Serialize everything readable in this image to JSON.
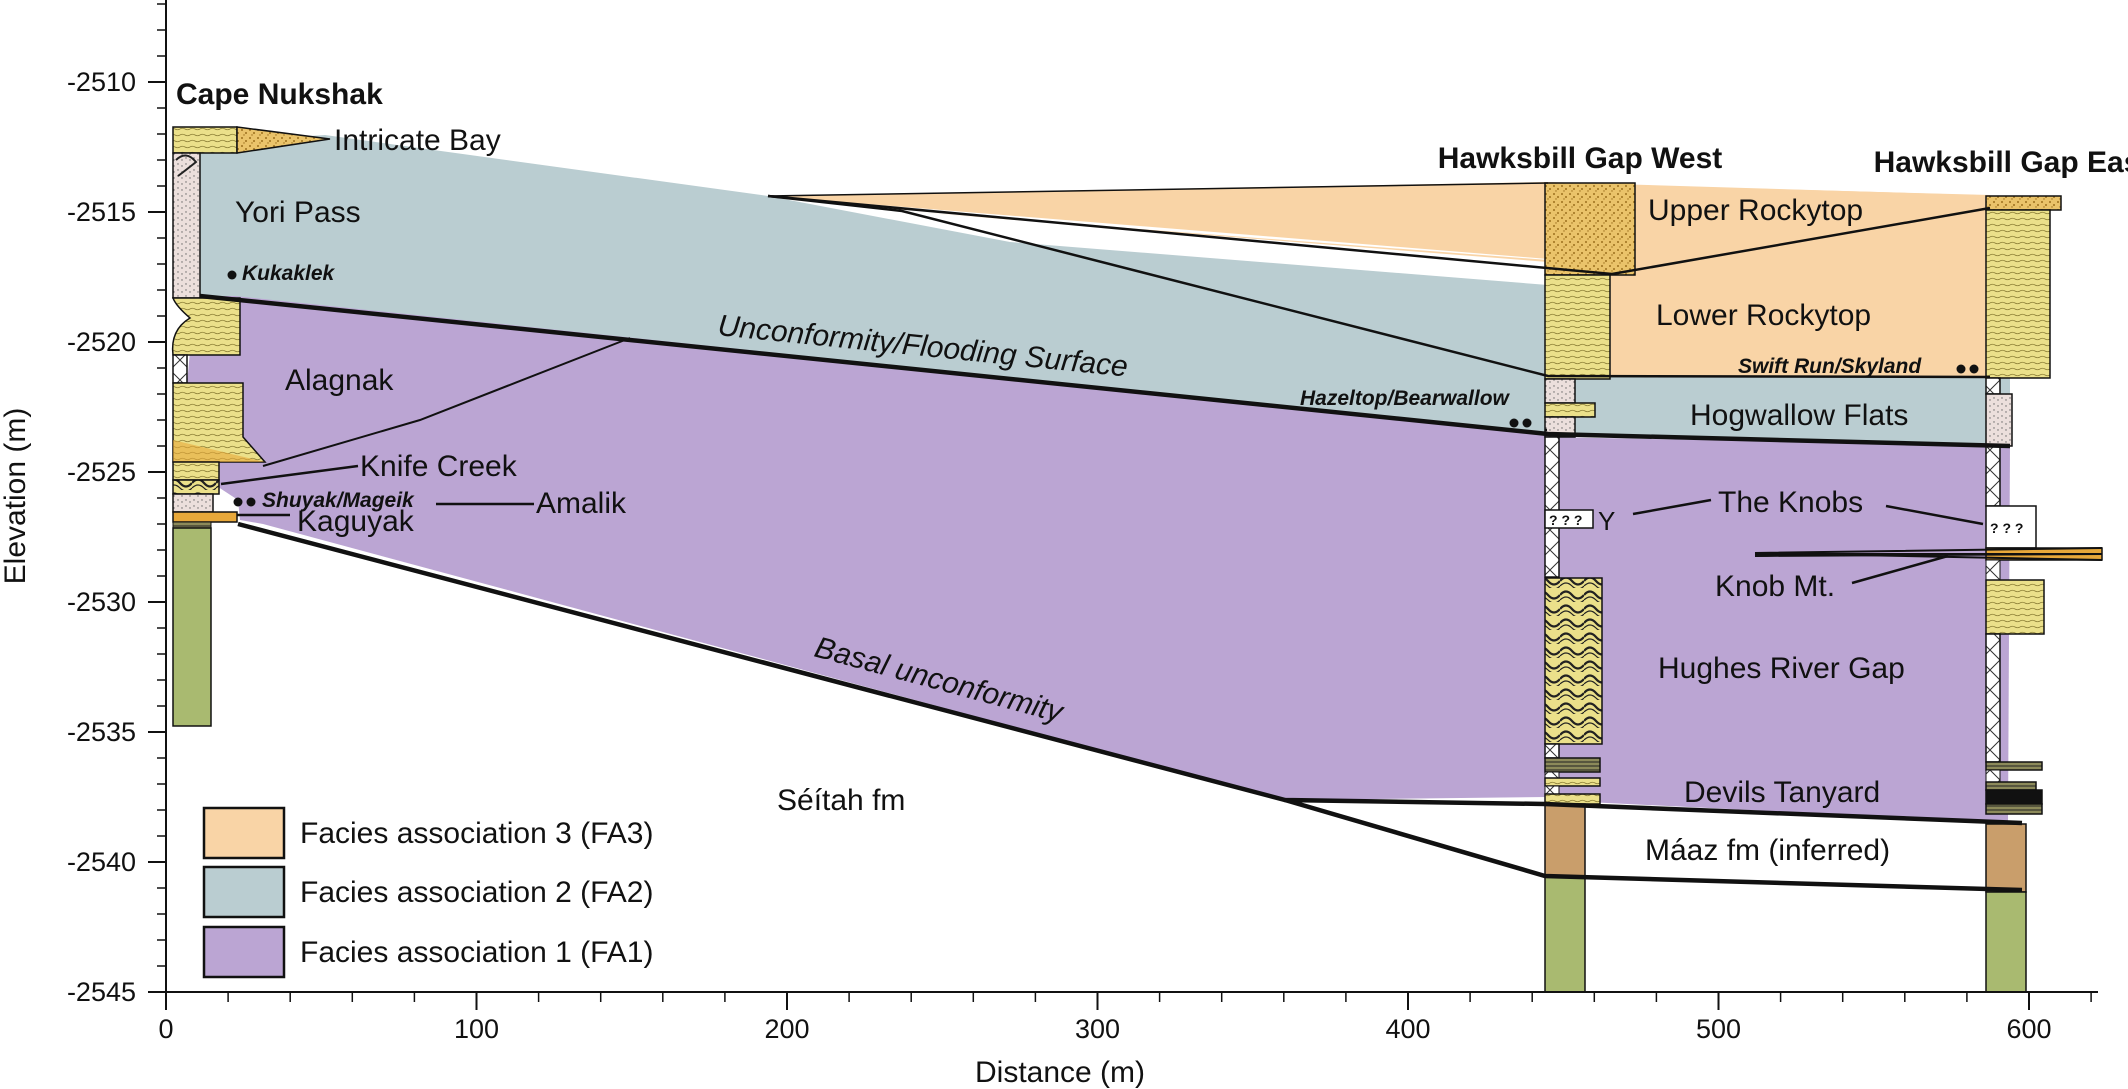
{
  "colors": {
    "fa3": "#f9d4a6",
    "fa2": "#bacdd1",
    "fa1": "#bba5d3",
    "sandstone": "#ebe08a",
    "mudstone": "#a9ba70",
    "maaz": "#c99e6b",
    "gravel": "#e8a83a",
    "line": "#111111"
  },
  "axes": {
    "x_title": "Distance (m)",
    "y_title": "Elevation (m)",
    "x_ticks": [
      {
        "value": 0,
        "label": "0"
      },
      {
        "value": 100,
        "label": "100"
      },
      {
        "value": 200,
        "label": "200"
      },
      {
        "value": 300,
        "label": "300"
      },
      {
        "value": 400,
        "label": "400"
      },
      {
        "value": 500,
        "label": "500"
      },
      {
        "value": 600,
        "label": "600"
      }
    ],
    "y_ticks": [
      {
        "value": -2510,
        "label": "-2510"
      },
      {
        "value": -2515,
        "label": "-2515"
      },
      {
        "value": -2520,
        "label": "-2520"
      },
      {
        "value": -2525,
        "label": "-2525"
      },
      {
        "value": -2530,
        "label": "-2530"
      },
      {
        "value": -2535,
        "label": "-2535"
      },
      {
        "value": -2540,
        "label": "-2540"
      },
      {
        "value": -2545,
        "label": "-2545"
      }
    ]
  },
  "sections": [
    {
      "id": "cape-nukshak",
      "label": "Cape Nukshak"
    },
    {
      "id": "hawksbill-gap-west",
      "label": "Hawksbill Gap West"
    },
    {
      "id": "hawksbill-gap-east",
      "label": "Hawksbill Gap East"
    }
  ],
  "units": {
    "intricate_bay": "Intricate Bay",
    "yori_pass": "Yori Pass",
    "alagnak": "Alagnak",
    "knife_creek": "Knife Creek",
    "amalik": "Amalik",
    "kaguyak": "Kaguyak",
    "upper_rockytop": "Upper Rockytop",
    "lower_rockytop": "Lower Rockytop",
    "hogwallow_flats": "Hogwallow Flats",
    "the_knobs": "The Knobs",
    "knob_mt": "Knob Mt.",
    "hughes_river_gap": "Hughes River Gap",
    "devils_tanyard": "Devils Tanyard",
    "maaz": "Máaz fm (inferred)",
    "seitah": "Séítah fm"
  },
  "beds": {
    "kukaklek": "Kukaklek",
    "shuyak_mageik": "Shuyak/Mageik",
    "hazeltop_bearwallow": "Hazeltop/Bearwallow",
    "swift_run_skyland": "Swift Run/Skyland"
  },
  "surfaces": {
    "unconformity_flooding": "Unconformity/Flooding Surface",
    "basal_unconformity": "Basal unconformity"
  },
  "uncertain_marks": {
    "west": "? ? ?",
    "west_symbol": "Y",
    "east": "? ? ?"
  },
  "legend": [
    {
      "id": "fa3",
      "label": "Facies association 3 (FA3)",
      "color": "#f9d4a6"
    },
    {
      "id": "fa2",
      "label": "Facies association 2 (FA2)",
      "color": "#bacdd1"
    },
    {
      "id": "fa1",
      "label": "Facies association 1 (FA1)",
      "color": "#bba5d3"
    }
  ]
}
